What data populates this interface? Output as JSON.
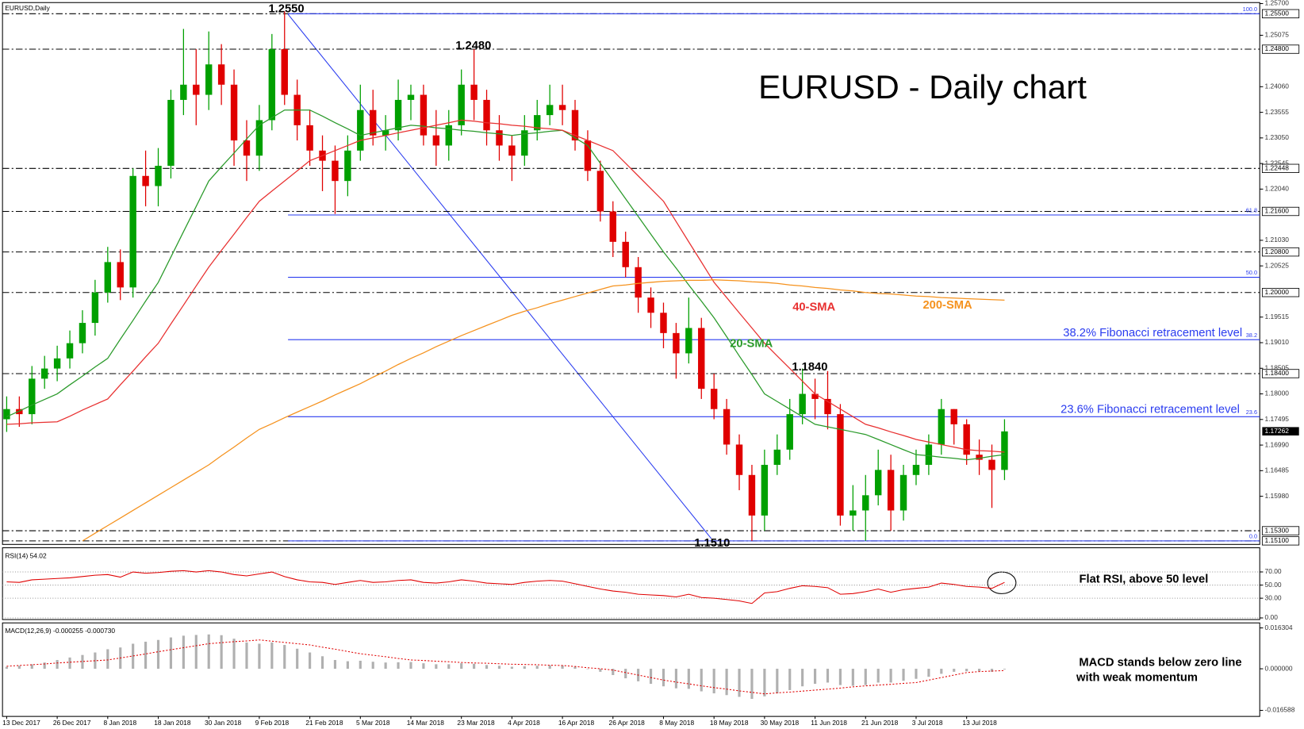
{
  "chart_data": [
    {
      "type": "candlestick",
      "title": "EURUSD,Daily",
      "heading": "EURUSD - Daily chart",
      "categories": [
        "13 Dec 2017",
        null,
        null,
        null,
        "26 Dec 2017",
        null,
        null,
        null,
        "8 Jan 2018",
        null,
        null,
        null,
        "18 Jan 2018",
        null,
        null,
        null,
        "30 Jan 2018",
        null,
        null,
        null,
        "9 Feb 2018",
        null,
        null,
        null,
        "21 Feb 2018",
        null,
        null,
        null,
        "5 Mar 2018",
        null,
        null,
        null,
        "14 Mar 2018",
        null,
        null,
        null,
        "23 Mar 2018",
        null,
        null,
        null,
        "4 Apr 2018",
        null,
        null,
        null,
        "16 Apr 2018",
        null,
        null,
        null,
        "26 Apr 2018",
        null,
        null,
        null,
        "8 May 2018",
        null,
        null,
        null,
        "18 May 2018",
        null,
        null,
        null,
        "30 May 2018",
        null,
        null,
        null,
        "11 Jun 2018",
        null,
        null,
        null,
        "21 Jun 2018",
        null,
        null,
        null,
        "3 Jul 2018",
        null,
        null,
        null,
        "13 Jul 2018",
        null,
        null,
        null
      ],
      "open": [
        1.175,
        1.177,
        1.176,
        1.183,
        1.185,
        1.187,
        1.19,
        1.194,
        1.2,
        1.206,
        1.201,
        1.223,
        1.221,
        1.225,
        1.238,
        1.241,
        1.239,
        1.245,
        1.241,
        1.23,
        1.227,
        1.234,
        1.248,
        1.239,
        1.233,
        1.228,
        1.226,
        1.222,
        1.228,
        1.236,
        1.231,
        1.232,
        1.238,
        1.239,
        1.231,
        1.229,
        1.233,
        1.241,
        1.238,
        1.232,
        1.229,
        1.227,
        1.232,
        1.235,
        1.237,
        1.236,
        1.23,
        1.224,
        1.216,
        1.21,
        1.205,
        1.199,
        1.196,
        1.192,
        1.188,
        1.193,
        1.181,
        1.177,
        1.17,
        1.164,
        1.156,
        1.166,
        1.169,
        1.176,
        1.18,
        1.179,
        1.176,
        1.156,
        1.157,
        1.16,
        1.165,
        1.157,
        1.164,
        1.166,
        1.17,
        1.177,
        1.174,
        1.168,
        1.167,
        1.165
      ],
      "high": [
        1.1795,
        1.1795,
        1.1855,
        1.1875,
        1.1895,
        1.1925,
        1.1965,
        1.2025,
        1.209,
        1.2085,
        1.2245,
        1.228,
        1.2285,
        1.24,
        1.252,
        1.248,
        1.2515,
        1.249,
        1.244,
        1.234,
        1.237,
        1.251,
        1.2555,
        1.242,
        1.236,
        1.231,
        1.229,
        1.231,
        1.241,
        1.24,
        1.235,
        1.242,
        1.241,
        1.241,
        1.236,
        1.236,
        1.244,
        1.248,
        1.24,
        1.235,
        1.231,
        1.235,
        1.238,
        1.241,
        1.241,
        1.238,
        1.232,
        1.226,
        1.218,
        1.212,
        1.207,
        1.201,
        1.198,
        1.194,
        1.199,
        1.195,
        1.184,
        1.179,
        1.172,
        1.166,
        1.169,
        1.172,
        1.179,
        1.185,
        1.183,
        1.1845,
        1.178,
        1.162,
        1.164,
        1.169,
        1.168,
        1.166,
        1.169,
        1.172,
        1.179,
        1.177,
        1.175,
        1.171,
        1.17,
        1.175
      ],
      "low": [
        1.1725,
        1.1735,
        1.174,
        1.181,
        1.1825,
        1.185,
        1.188,
        1.1915,
        1.198,
        1.1985,
        1.199,
        1.217,
        1.217,
        1.2225,
        1.235,
        1.233,
        1.236,
        1.237,
        1.225,
        1.222,
        1.224,
        1.232,
        1.237,
        1.23,
        1.225,
        1.22,
        1.2155,
        1.219,
        1.226,
        1.229,
        1.228,
        1.23,
        1.234,
        1.229,
        1.225,
        1.226,
        1.231,
        1.234,
        1.229,
        1.226,
        1.222,
        1.225,
        1.23,
        1.233,
        1.233,
        1.228,
        1.222,
        1.214,
        1.207,
        1.203,
        1.196,
        1.193,
        1.189,
        1.183,
        1.186,
        1.179,
        1.175,
        1.168,
        1.161,
        1.151,
        1.153,
        1.164,
        1.167,
        1.174,
        1.175,
        1.173,
        1.154,
        1.153,
        1.151,
        1.158,
        1.153,
        1.155,
        1.162,
        1.164,
        1.168,
        1.17,
        1.166,
        1.164,
        1.1575,
        1.163
      ],
      "close": [
        1.177,
        1.176,
        1.183,
        1.185,
        1.187,
        1.19,
        1.194,
        1.2,
        1.206,
        1.201,
        1.223,
        1.221,
        1.225,
        1.238,
        1.241,
        1.239,
        1.245,
        1.241,
        1.23,
        1.227,
        1.234,
        1.248,
        1.239,
        1.233,
        1.228,
        1.226,
        1.222,
        1.228,
        1.236,
        1.231,
        1.232,
        1.238,
        1.239,
        1.231,
        1.229,
        1.233,
        1.241,
        1.238,
        1.232,
        1.229,
        1.227,
        1.232,
        1.235,
        1.237,
        1.236,
        1.23,
        1.224,
        1.216,
        1.21,
        1.205,
        1.199,
        1.196,
        1.192,
        1.188,
        1.193,
        1.181,
        1.177,
        1.17,
        1.164,
        1.156,
        1.166,
        1.169,
        1.176,
        1.18,
        1.179,
        1.176,
        1.156,
        1.157,
        1.16,
        1.165,
        1.157,
        1.164,
        1.166,
        1.17,
        1.177,
        1.174,
        1.168,
        1.167,
        1.165,
        1.1726
      ],
      "up_color": "#00a000",
      "down_color": "#e00000",
      "series": [
        {
          "name": "20-SMA",
          "color": "#2a9a2a",
          "values": [
            1.1755,
            1.1766,
            1.1778,
            1.1789,
            1.18,
            1.1818,
            1.1835,
            1.1853,
            1.187,
            1.1908,
            1.1945,
            1.1983,
            1.202,
            1.207,
            1.212,
            1.217,
            1.222,
            1.2248,
            1.2275,
            1.2303,
            1.233,
            1.2345,
            1.236,
            1.236,
            1.236,
            1.2348,
            1.2335,
            1.2323,
            1.231,
            1.2315,
            1.232,
            1.2325,
            1.233,
            1.2328,
            1.2325,
            1.2323,
            1.232,
            1.2318,
            1.2315,
            1.2313,
            1.231,
            1.2313,
            1.2315,
            1.2318,
            1.232,
            1.2305,
            1.229,
            1.2255,
            1.222,
            1.2185,
            1.215,
            1.2115,
            1.208,
            1.2048,
            1.2015,
            1.1983,
            1.195,
            1.1913,
            1.1875,
            1.1838,
            1.18,
            1.1785,
            1.177,
            1.1755,
            1.174,
            1.1735,
            1.173,
            1.1725,
            1.172,
            1.171,
            1.17,
            1.169,
            1.168,
            1.1678,
            1.1675,
            1.1673,
            1.167,
            1.1673,
            1.1677,
            1.168
          ]
        },
        {
          "name": "40-SMA",
          "color": "#e83030",
          "values": [
            1.174,
            1.1741,
            1.1743,
            1.1744,
            1.1745,
            1.1756,
            1.1768,
            1.1779,
            1.179,
            1.1818,
            1.1845,
            1.1873,
            1.19,
            1.1938,
            1.1975,
            1.2013,
            1.205,
            1.2083,
            1.2115,
            1.2148,
            1.218,
            1.22,
            1.222,
            1.224,
            1.226,
            1.227,
            1.228,
            1.229,
            1.23,
            1.2305,
            1.231,
            1.2315,
            1.232,
            1.2325,
            1.233,
            1.2335,
            1.234,
            1.2338,
            1.2335,
            1.2333,
            1.233,
            1.2328,
            1.2325,
            1.2323,
            1.232,
            1.231,
            1.23,
            1.229,
            1.228,
            1.2255,
            1.223,
            1.2205,
            1.218,
            1.214,
            1.21,
            1.206,
            1.202,
            1.199,
            1.196,
            1.193,
            1.19,
            1.1875,
            1.185,
            1.1825,
            1.18,
            1.1785,
            1.177,
            1.1755,
            1.174,
            1.1733,
            1.1725,
            1.1718,
            1.171,
            1.1705,
            1.17,
            1.1695,
            1.169,
            1.1688,
            1.1687,
            1.1685
          ]
        },
        {
          "name": "200-SMA",
          "color": "#f5921e",
          "values": [
            null,
            null,
            null,
            null,
            null,
            null,
            1.151,
            1.1525,
            1.154,
            1.1555,
            1.157,
            1.1585,
            1.16,
            1.1615,
            1.163,
            1.1645,
            1.166,
            1.1678,
            1.1695,
            1.1713,
            1.173,
            1.1741,
            1.1753,
            1.1764,
            1.1775,
            1.1786,
            1.1798,
            1.1809,
            1.182,
            1.1833,
            1.1845,
            1.1858,
            1.187,
            1.1881,
            1.1893,
            1.1904,
            1.1915,
            1.1925,
            1.1935,
            1.1945,
            1.1955,
            1.1963,
            1.197,
            1.1978,
            1.1985,
            1.1992,
            1.1999,
            1.2006,
            1.2013,
            1.2015,
            1.2018,
            1.202,
            1.2022,
            1.2023,
            1.2024,
            1.2024,
            1.2025,
            1.2024,
            1.2023,
            1.2021,
            1.202,
            1.2018,
            1.2015,
            1.2013,
            1.201,
            1.2008,
            1.2005,
            1.2003,
            1.2,
            1.1998,
            1.1997,
            1.1995,
            1.1993,
            1.1992,
            1.199,
            1.1989,
            1.1988,
            1.1987,
            1.1986,
            1.1985
          ]
        }
      ],
      "ylim": [
        1.1503,
        1.2572
      ],
      "yticks": [
        {
          "value": 1.257,
          "label": "1.25700"
        },
        1.25075,
        {
          "value": 1.2406,
          "label": "1.24060"
        },
        1.23555,
        {
          "value": 1.2305,
          "label": "1.23050"
        },
        1.22545,
        {
          "value": 1.2204,
          "label": "1.22040"
        },
        {
          "value": 1.2103,
          "label": "1.21030"
        },
        1.20525,
        1.19515,
        {
          "value": 1.1901,
          "label": "1.19010"
        },
        1.18505,
        {
          "value": 1.18,
          "label": "1.18000"
        },
        1.17495,
        {
          "value": 1.1699,
          "label": "1.16990"
        },
        1.16485,
        {
          "value": 1.1598,
          "label": "1.15980"
        }
      ],
      "levels": [
        {
          "value": 1.255,
          "label": "1.25500"
        },
        {
          "value": 1.248,
          "label": "1.24800"
        },
        {
          "value": 1.22448,
          "label": "1.22448"
        },
        {
          "value": 1.216,
          "label": "1.21600"
        },
        {
          "value": 1.208,
          "label": "1.20800"
        },
        {
          "value": 1.2,
          "label": "1.20000"
        },
        {
          "value": 1.184,
          "label": "1.18400"
        },
        {
          "value": 1.153,
          "label": "1.15300"
        },
        {
          "value": 1.151,
          "label": "1.15100"
        }
      ],
      "current_price": {
        "value": 1.17262,
        "label": "1.17262"
      },
      "fibonacci_color": "#2a3cf0",
      "fibonacci": [
        {
          "value": 1.255,
          "label": "100.0"
        },
        {
          "value": 1.2153,
          "label": "61.8"
        },
        {
          "value": 1.203,
          "label": "50.0"
        },
        {
          "value": 1.1907,
          "label": "38.2"
        },
        {
          "value": 1.1755,
          "label": "23.6"
        },
        {
          "value": 1.151,
          "label": "0.0"
        }
      ],
      "annotations": [
        {
          "text": "1.2550",
          "color": "#000000"
        },
        {
          "text": "1.2480",
          "color": "#000000"
        },
        {
          "text": "1.1840",
          "color": "#000000"
        },
        {
          "text": "1.1510",
          "color": "#000000"
        },
        {
          "text": "20-SMA",
          "color": "#2a9a2a"
        },
        {
          "text": "40-SMA",
          "color": "#e83030"
        },
        {
          "text": "200-SMA",
          "color": "#f5921e"
        },
        {
          "text": "38.2% Fibonacci retracement level",
          "color": "#2a3cf0"
        },
        {
          "text": "23.6% Fibonacci retracement level",
          "color": "#2a3cf0"
        }
      ]
    },
    {
      "type": "line",
      "title": "RSI(14) 54.02",
      "color": "#e00000",
      "annotation": "Flat RSI, above 50 level",
      "values": [
        55,
        54,
        58,
        59,
        60,
        61,
        63,
        65,
        66,
        62,
        70,
        68,
        69,
        71,
        72,
        70,
        72,
        70,
        66,
        64,
        67,
        70,
        63,
        58,
        55,
        54,
        51,
        54,
        57,
        54,
        55,
        57,
        58,
        54,
        53,
        55,
        58,
        56,
        53,
        52,
        51,
        54,
        56,
        57,
        56,
        52,
        48,
        44,
        41,
        39,
        36,
        35,
        34,
        32,
        36,
        31,
        30,
        28,
        26,
        22,
        38,
        40,
        45,
        49,
        48,
        46,
        36,
        37,
        40,
        44,
        39,
        43,
        45,
        47,
        53,
        51,
        48,
        47,
        45,
        54.02
      ],
      "ylim": [
        -2.5,
        106.8
      ],
      "yticks": [
        {
          "value": 0,
          "label": "0.00"
        },
        {
          "value": 30,
          "label": "30.00"
        },
        {
          "value": 50,
          "label": "50.00"
        },
        {
          "value": 70,
          "label": "70.00"
        }
      ],
      "grid": true
    },
    {
      "type": "macd",
      "title": "MACD(12,26,9) -0.000255 -0.000730",
      "annotations": [
        "MACD stands below zero line",
        "with weak momentum"
      ],
      "histogram_color": "#b0b0b0",
      "signal_color": "#e00000",
      "histogram": [
        0.0008,
        0.0012,
        0.0018,
        0.0025,
        0.0035,
        0.0045,
        0.0055,
        0.0065,
        0.0078,
        0.0085,
        0.01,
        0.0108,
        0.0115,
        0.0125,
        0.0132,
        0.0135,
        0.0137,
        0.0134,
        0.012,
        0.0105,
        0.01,
        0.0105,
        0.0095,
        0.008,
        0.0065,
        0.005,
        0.0035,
        0.003,
        0.0032,
        0.0028,
        0.0025,
        0.0026,
        0.0027,
        0.0022,
        0.0018,
        0.0018,
        0.0022,
        0.002,
        0.0015,
        0.0012,
        0.0008,
        0.001,
        0.0012,
        0.0014,
        0.0013,
        0.0008,
        0.0,
        -0.0012,
        -0.0025,
        -0.0038,
        -0.005,
        -0.006,
        -0.007,
        -0.0078,
        -0.008,
        -0.009,
        -0.0098,
        -0.0105,
        -0.0112,
        -0.012,
        -0.011,
        -0.0098,
        -0.0085,
        -0.007,
        -0.006,
        -0.0055,
        -0.0065,
        -0.0068,
        -0.0065,
        -0.0055,
        -0.0055,
        -0.0048,
        -0.004,
        -0.0032,
        -0.002,
        -0.0012,
        -0.001,
        -0.001,
        -0.0012,
        -0.000255
      ],
      "signal": [
        0.001,
        0.0013,
        0.0016,
        0.0019,
        0.0023,
        0.0026,
        0.0029,
        0.0032,
        0.0035,
        0.0043,
        0.0051,
        0.0059,
        0.0068,
        0.0076,
        0.0084,
        0.0092,
        0.01,
        0.0104,
        0.0108,
        0.0111,
        0.0115,
        0.011,
        0.0105,
        0.01,
        0.0095,
        0.0086,
        0.0078,
        0.0069,
        0.006,
        0.0054,
        0.0048,
        0.0041,
        0.0035,
        0.0033,
        0.003,
        0.0028,
        0.0025,
        0.0023,
        0.0022,
        0.002,
        0.0018,
        0.0017,
        0.0016,
        0.0014,
        0.0013,
        0.0009,
        0.0004,
        0.0,
        -0.0005,
        -0.0015,
        -0.0025,
        -0.0035,
        -0.0045,
        -0.0053,
        -0.006,
        -0.0068,
        -0.0075,
        -0.0081,
        -0.0088,
        -0.0094,
        -0.01,
        -0.0096,
        -0.0093,
        -0.0089,
        -0.0085,
        -0.0081,
        -0.0077,
        -0.0072,
        -0.0068,
        -0.0065,
        -0.0062,
        -0.0058,
        -0.0055,
        -0.0045,
        -0.0035,
        -0.0025,
        -0.0015,
        -0.0011,
        -0.0009,
        -0.00073
      ],
      "ylim": [
        -0.019,
        0.0183
      ],
      "yticks": [
        0.016304,
        {
          "value": 0,
          "label": "0.000000"
        },
        -0.016588
      ]
    }
  ]
}
